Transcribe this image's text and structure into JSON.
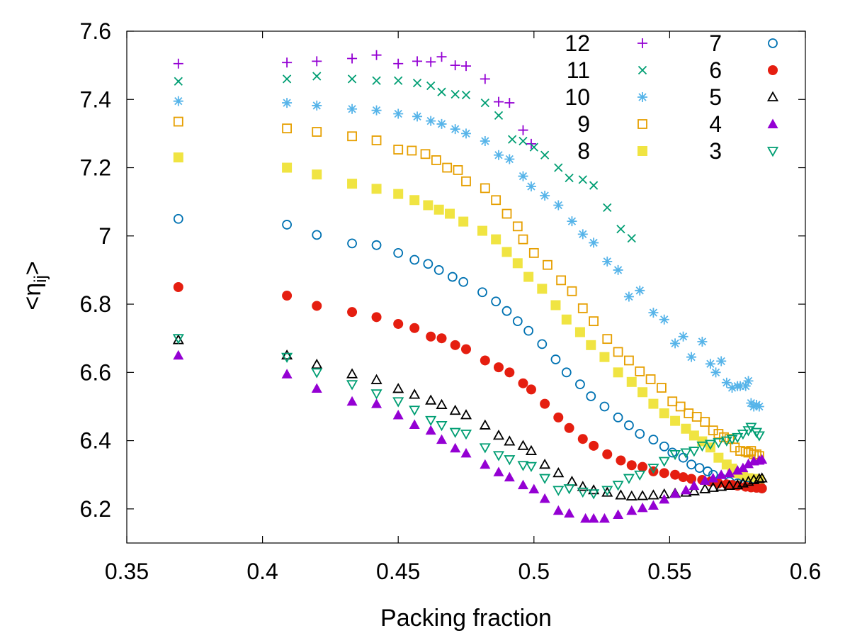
{
  "chart_data": {
    "type": "scatter",
    "title": "",
    "xlabel": "Packing fraction",
    "ylabel_prefix": "<η",
    "ylabel_sub": "ij",
    "ylabel_suffix": ">",
    "xlim": [
      0.35,
      0.6
    ],
    "ylim": [
      6.1,
      7.6
    ],
    "xticks": [
      0.35,
      0.4,
      0.45,
      0.5,
      0.55,
      0.6
    ],
    "xtick_labels": [
      "0.35",
      "0.4",
      "0.45",
      "0.5",
      "0.55",
      "0.6"
    ],
    "yticks": [
      6.2,
      6.4,
      6.6,
      6.8,
      7.0,
      7.2,
      7.4,
      7.6
    ],
    "ytick_labels": [
      "6.2",
      "6.4",
      "6.6",
      "6.8",
      "7",
      "7.2",
      "7.4",
      "7.6"
    ],
    "grid": false,
    "legend_position": "top-right",
    "series": [
      {
        "name": "12",
        "marker": "plus",
        "color": "#9400d3",
        "x": [
          0.369,
          0.409,
          0.42,
          0.433,
          0.442,
          0.45,
          0.457,
          0.462,
          0.466,
          0.471,
          0.475,
          0.482,
          0.487,
          0.491,
          0.496,
          0.499
        ],
        "y": [
          7.505,
          7.508,
          7.512,
          7.52,
          7.53,
          7.505,
          7.512,
          7.51,
          7.525,
          7.5,
          7.498,
          7.46,
          7.393,
          7.39,
          7.31,
          7.27
        ]
      },
      {
        "name": "11",
        "marker": "x",
        "color": "#009e73",
        "x": [
          0.369,
          0.409,
          0.42,
          0.433,
          0.442,
          0.45,
          0.457,
          0.462,
          0.466,
          0.471,
          0.475,
          0.482,
          0.487,
          0.492,
          0.496,
          0.5,
          0.504,
          0.509,
          0.513,
          0.518,
          0.522,
          0.527,
          0.532,
          0.536
        ],
        "y": [
          7.453,
          7.46,
          7.468,
          7.46,
          7.455,
          7.455,
          7.448,
          7.44,
          7.422,
          7.415,
          7.413,
          7.39,
          7.353,
          7.283,
          7.278,
          7.26,
          7.237,
          7.2,
          7.17,
          7.165,
          7.148,
          7.083,
          7.02,
          6.993
        ]
      },
      {
        "name": "10",
        "marker": "star",
        "color": "#56b4e9",
        "x": [
          0.369,
          0.409,
          0.42,
          0.433,
          0.442,
          0.45,
          0.457,
          0.462,
          0.466,
          0.471,
          0.475,
          0.482,
          0.487,
          0.491,
          0.496,
          0.499,
          0.504,
          0.509,
          0.514,
          0.518,
          0.522,
          0.527,
          0.531,
          0.535,
          0.539,
          0.544,
          0.548,
          0.552,
          0.555,
          0.558,
          0.562,
          0.565,
          0.567,
          0.569,
          0.571,
          0.573,
          0.575,
          0.576,
          0.578,
          0.579,
          0.58,
          0.581,
          0.582,
          0.583
        ],
        "y": [
          7.395,
          7.39,
          7.382,
          7.372,
          7.368,
          7.358,
          7.35,
          7.337,
          7.328,
          7.313,
          7.3,
          7.278,
          7.237,
          7.225,
          7.175,
          7.145,
          7.118,
          7.09,
          7.043,
          7.005,
          6.98,
          6.925,
          6.9,
          6.822,
          6.84,
          6.775,
          6.755,
          6.685,
          6.705,
          6.645,
          6.69,
          6.625,
          6.6,
          6.633,
          6.57,
          6.555,
          6.56,
          6.56,
          6.56,
          6.575,
          6.51,
          6.5,
          6.505,
          6.5
        ]
      },
      {
        "name": "9",
        "marker": "square-open",
        "color": "#e69f00",
        "x": [
          0.369,
          0.409,
          0.42,
          0.433,
          0.442,
          0.45,
          0.455,
          0.46,
          0.464,
          0.468,
          0.472,
          0.475,
          0.482,
          0.486,
          0.49,
          0.494,
          0.496,
          0.5,
          0.505,
          0.51,
          0.514,
          0.518,
          0.522,
          0.527,
          0.531,
          0.535,
          0.539,
          0.543,
          0.547,
          0.551,
          0.554,
          0.557,
          0.56,
          0.563,
          0.566,
          0.568,
          0.57,
          0.572,
          0.574,
          0.576,
          0.578,
          0.579,
          0.58,
          0.581,
          0.582,
          0.583
        ],
        "y": [
          7.335,
          7.315,
          7.305,
          7.292,
          7.28,
          7.253,
          7.25,
          7.24,
          7.222,
          7.2,
          7.193,
          7.16,
          7.14,
          7.105,
          7.065,
          7.028,
          6.99,
          6.95,
          6.915,
          6.87,
          6.838,
          6.788,
          6.75,
          6.698,
          6.66,
          6.635,
          6.603,
          6.58,
          6.555,
          6.515,
          6.5,
          6.48,
          6.47,
          6.455,
          6.43,
          6.42,
          6.41,
          6.405,
          6.38,
          6.37,
          6.368,
          6.365,
          6.37,
          6.36,
          6.36,
          6.355
        ]
      },
      {
        "name": "8",
        "marker": "square-filled",
        "color": "#f0e442",
        "x": [
          0.369,
          0.409,
          0.42,
          0.433,
          0.442,
          0.45,
          0.456,
          0.461,
          0.465,
          0.469,
          0.474,
          0.481,
          0.486,
          0.49,
          0.494,
          0.498,
          0.503,
          0.508,
          0.512,
          0.517,
          0.521,
          0.526,
          0.531,
          0.536,
          0.54,
          0.544,
          0.548,
          0.552,
          0.556,
          0.559,
          0.562,
          0.565,
          0.568,
          0.571,
          0.573,
          0.575,
          0.577,
          0.579,
          0.581,
          0.583
        ],
        "y": [
          7.23,
          7.2,
          7.18,
          7.153,
          7.138,
          7.123,
          7.105,
          7.09,
          7.077,
          7.065,
          7.042,
          7.015,
          6.99,
          6.953,
          6.92,
          6.88,
          6.845,
          6.797,
          6.755,
          6.718,
          6.68,
          6.645,
          6.6,
          6.572,
          6.542,
          6.508,
          6.48,
          6.458,
          6.435,
          6.415,
          6.398,
          6.38,
          6.35,
          6.33,
          6.318,
          6.305,
          6.298,
          6.29,
          6.288,
          6.285
        ]
      },
      {
        "name": "7",
        "marker": "circle-open",
        "color": "#0072b2",
        "x": [
          0.369,
          0.409,
          0.42,
          0.433,
          0.442,
          0.45,
          0.456,
          0.461,
          0.465,
          0.47,
          0.474,
          0.481,
          0.486,
          0.49,
          0.494,
          0.498,
          0.503,
          0.508,
          0.512,
          0.517,
          0.521,
          0.526,
          0.531,
          0.535,
          0.539,
          0.544,
          0.548,
          0.551,
          0.555,
          0.558,
          0.561,
          0.564,
          0.566,
          0.569,
          0.572,
          0.575,
          0.577,
          0.579,
          0.58,
          0.582,
          0.584
        ],
        "y": [
          7.05,
          7.033,
          7.003,
          6.978,
          6.973,
          6.95,
          6.93,
          6.918,
          6.9,
          6.88,
          6.865,
          6.835,
          6.808,
          6.78,
          6.75,
          6.722,
          6.683,
          6.638,
          6.6,
          6.565,
          6.53,
          6.5,
          6.468,
          6.445,
          6.42,
          6.403,
          6.383,
          6.365,
          6.35,
          6.33,
          6.32,
          6.31,
          6.3,
          6.29,
          6.28,
          6.275,
          6.27,
          6.268,
          6.265,
          6.262,
          6.26
        ]
      },
      {
        "name": "6",
        "marker": "circle-filled",
        "color": "#e51e10",
        "x": [
          0.369,
          0.409,
          0.42,
          0.433,
          0.442,
          0.45,
          0.456,
          0.462,
          0.466,
          0.471,
          0.475,
          0.482,
          0.487,
          0.491,
          0.496,
          0.499,
          0.504,
          0.509,
          0.513,
          0.518,
          0.522,
          0.527,
          0.532,
          0.536,
          0.54,
          0.544,
          0.548,
          0.552,
          0.555,
          0.558,
          0.562,
          0.565,
          0.568,
          0.571,
          0.573,
          0.575,
          0.578,
          0.58,
          0.582,
          0.584
        ],
        "y": [
          6.85,
          6.825,
          6.795,
          6.777,
          6.762,
          6.742,
          6.73,
          6.705,
          6.7,
          6.68,
          6.668,
          6.635,
          6.615,
          6.6,
          6.568,
          6.55,
          6.508,
          6.468,
          6.437,
          6.405,
          6.385,
          6.36,
          6.342,
          6.328,
          6.323,
          6.31,
          6.305,
          6.3,
          6.293,
          6.288,
          6.285,
          6.28,
          6.275,
          6.272,
          6.27,
          6.268,
          6.265,
          6.263,
          6.262,
          6.26
        ]
      },
      {
        "name": "5",
        "marker": "triangle-open",
        "color": "#000000",
        "x": [
          0.369,
          0.409,
          0.42,
          0.433,
          0.442,
          0.45,
          0.456,
          0.462,
          0.466,
          0.471,
          0.475,
          0.482,
          0.487,
          0.491,
          0.496,
          0.499,
          0.504,
          0.509,
          0.514,
          0.518,
          0.522,
          0.527,
          0.532,
          0.536,
          0.54,
          0.544,
          0.548,
          0.552,
          0.556,
          0.559,
          0.563,
          0.566,
          0.569,
          0.572,
          0.575,
          0.577,
          0.579,
          0.581,
          0.583,
          0.584
        ],
        "y": [
          6.695,
          6.65,
          6.623,
          6.595,
          6.578,
          6.552,
          6.535,
          6.518,
          6.505,
          6.488,
          6.475,
          6.445,
          6.415,
          6.398,
          6.385,
          6.37,
          6.33,
          6.305,
          6.28,
          6.265,
          6.255,
          6.248,
          6.24,
          6.237,
          6.238,
          6.24,
          6.243,
          6.245,
          6.248,
          6.252,
          6.258,
          6.262,
          6.265,
          6.268,
          6.27,
          6.275,
          6.28,
          6.285,
          6.288,
          6.29
        ]
      },
      {
        "name": "4",
        "marker": "triangle-filled",
        "color": "#9400d3",
        "x": [
          0.369,
          0.409,
          0.42,
          0.433,
          0.442,
          0.45,
          0.456,
          0.462,
          0.466,
          0.471,
          0.475,
          0.482,
          0.487,
          0.491,
          0.496,
          0.5,
          0.504,
          0.509,
          0.513,
          0.519,
          0.522,
          0.526,
          0.531,
          0.536,
          0.54,
          0.544,
          0.548,
          0.552,
          0.556,
          0.559,
          0.563,
          0.566,
          0.569,
          0.572,
          0.575,
          0.577,
          0.579,
          0.581,
          0.583,
          0.584
        ],
        "y": [
          6.65,
          6.595,
          6.553,
          6.515,
          6.508,
          6.475,
          6.447,
          6.43,
          6.403,
          6.378,
          6.363,
          6.33,
          6.308,
          6.293,
          6.27,
          6.258,
          6.23,
          6.195,
          6.187,
          6.172,
          6.172,
          6.172,
          6.183,
          6.195,
          6.203,
          6.21,
          6.228,
          6.245,
          6.255,
          6.268,
          6.283,
          6.29,
          6.3,
          6.305,
          6.313,
          6.32,
          6.332,
          6.34,
          6.342,
          6.345
        ]
      },
      {
        "name": "3",
        "marker": "triangle-down-open",
        "color": "#009e73",
        "x": [
          0.369,
          0.409,
          0.42,
          0.433,
          0.442,
          0.45,
          0.456,
          0.462,
          0.466,
          0.471,
          0.475,
          0.482,
          0.487,
          0.491,
          0.496,
          0.499,
          0.504,
          0.509,
          0.513,
          0.518,
          0.522,
          0.527,
          0.531,
          0.535,
          0.539,
          0.544,
          0.548,
          0.552,
          0.556,
          0.559,
          0.562,
          0.565,
          0.568,
          0.571,
          0.573,
          0.575,
          0.577,
          0.579,
          0.58,
          0.582,
          0.583
        ],
        "y": [
          6.7,
          6.645,
          6.6,
          6.565,
          6.538,
          6.515,
          6.49,
          6.46,
          6.445,
          6.425,
          6.42,
          6.38,
          6.357,
          6.345,
          6.328,
          6.325,
          6.29,
          6.255,
          6.26,
          6.25,
          6.245,
          6.255,
          6.27,
          6.29,
          6.3,
          6.32,
          6.34,
          6.36,
          6.365,
          6.37,
          6.385,
          6.39,
          6.395,
          6.4,
          6.405,
          6.41,
          6.42,
          6.43,
          6.44,
          6.425,
          6.415
        ]
      }
    ]
  }
}
